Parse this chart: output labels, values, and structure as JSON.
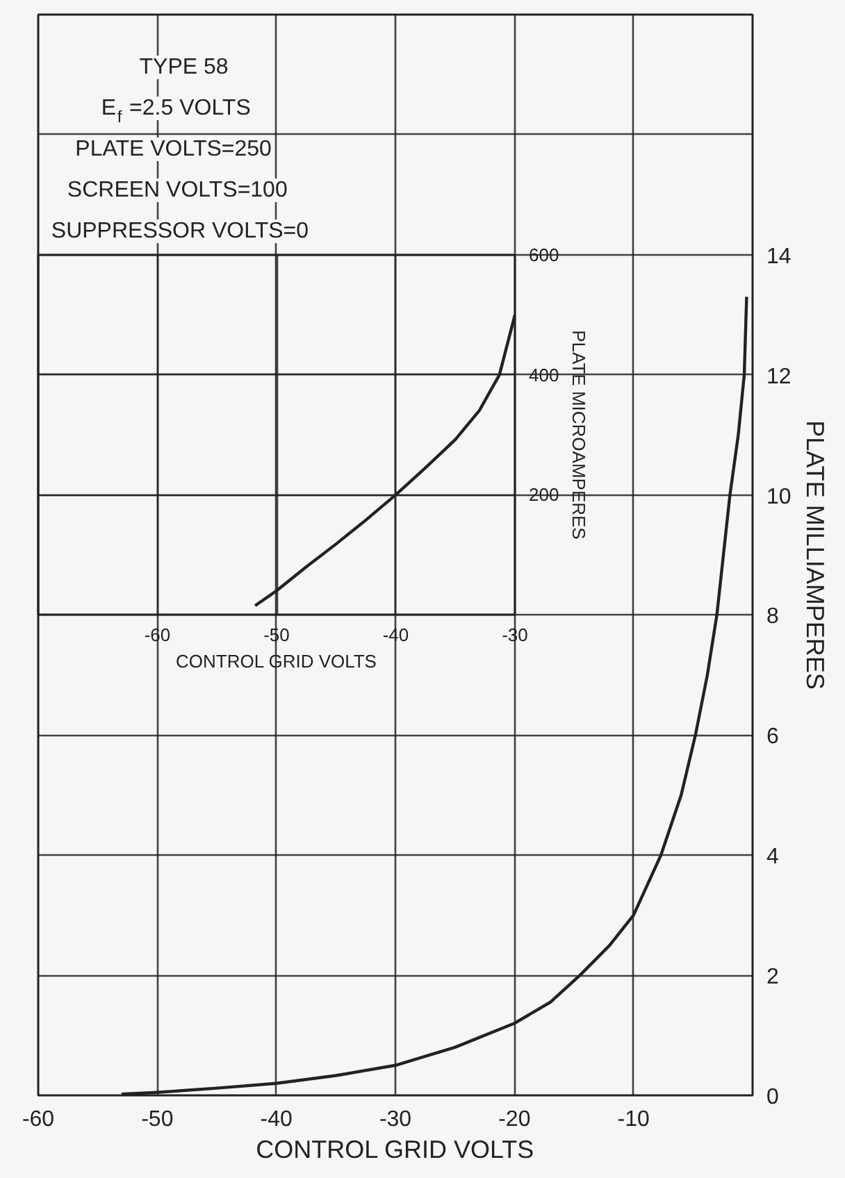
{
  "chart_data": [
    {
      "type": "line",
      "title": "TYPE 58",
      "annotations": [
        "E$_{f}$=2.5 VOLTS",
        "PLATE VOLTS=250",
        "SCREEN VOLTS=100",
        "SUPPRESSOR VOLTS=0"
      ],
      "xlabel": "CONTROL GRID VOLTS",
      "ylabel": "PLATE MILLIAMPERES",
      "x": [
        -53,
        -50,
        -45,
        -40,
        -35,
        -30,
        -25,
        -20,
        -17,
        -14.5,
        -12,
        -10,
        -7.7,
        -6,
        -4.8,
        -3.8,
        -3.0,
        -1.9,
        -1.2,
        -0.7,
        -0.5
      ],
      "series": [
        {
          "color": "#222222",
          "values": [
            0.02,
            0.05,
            0.12,
            0.2,
            0.33,
            0.5,
            0.8,
            1.2,
            1.55,
            2.0,
            2.5,
            3.0,
            4.0,
            5.0,
            6.0,
            7.0,
            8.0,
            10,
            11,
            12,
            13.3
          ]
        }
      ],
      "xlim": [
        -60,
        0
      ],
      "xticks": [
        -60,
        -50,
        -40,
        -30,
        -20,
        -10
      ],
      "ylim": [
        0,
        18
      ],
      "yticks": [
        0,
        2,
        4,
        6,
        8,
        10,
        12,
        14,
        {
          "value": 16,
          "label": null
        }
      ],
      "grid": true,
      "tick_labels": "xy"
    },
    {
      "type": "line",
      "xlabel": "CONTROL GRID VOLTS",
      "ylabel": "PLATE MICROAMPERES",
      "x": [
        -51.8,
        -50,
        -47.5,
        -45,
        -42.5,
        -40,
        -37.5,
        -35,
        -33,
        -31.3,
        -30
      ],
      "series": [
        {
          "color": "#222222",
          "values": [
            15,
            40,
            80,
            118,
            158,
            200,
            245,
            292,
            340,
            400,
            500
          ]
        }
      ],
      "xlim": [
        -70,
        -30
      ],
      "xticks": [
        -60,
        -50,
        -40,
        -30
      ],
      "ylim": [
        0,
        600
      ],
      "yticks": [
        200,
        400,
        600
      ],
      "grid": true
    }
  ]
}
